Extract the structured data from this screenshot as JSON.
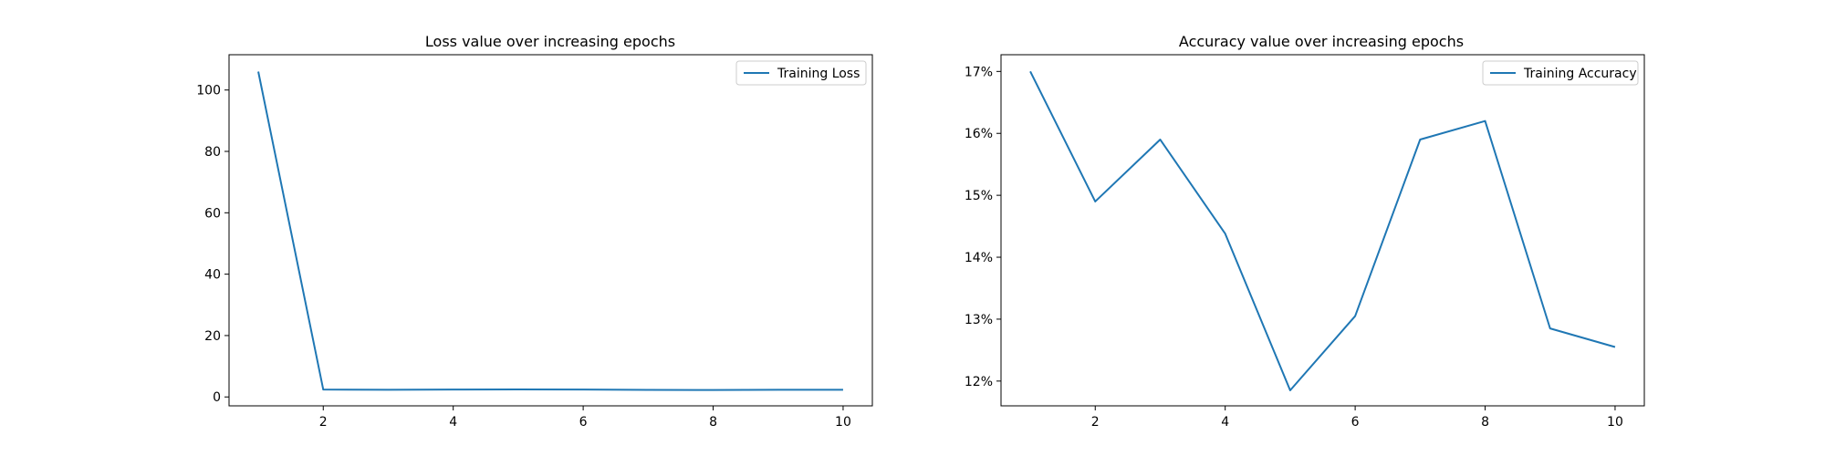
{
  "chart_data": [
    {
      "type": "line",
      "title": "Loss value over increasing epochs",
      "xlabel": "",
      "ylabel": "",
      "x": [
        1,
        2,
        3,
        4,
        5,
        6,
        7,
        8,
        9,
        10
      ],
      "xlim": [
        0.55,
        10.45
      ],
      "ylim": [
        -2.9,
        111.5
      ],
      "xticks": [
        2,
        4,
        6,
        8,
        10
      ],
      "yticks": [
        0,
        20,
        40,
        60,
        80,
        100
      ],
      "ytick_labels": [
        "0",
        "20",
        "40",
        "60",
        "80",
        "100"
      ],
      "series": [
        {
          "name": "Training Loss",
          "values": [
            106,
            2.4,
            2.35,
            2.4,
            2.45,
            2.4,
            2.3,
            2.25,
            2.35,
            2.35
          ]
        }
      ],
      "legend": "upper right",
      "grid": false,
      "line_color": "#1f77b4"
    },
    {
      "type": "line",
      "title": "Accuracy value over increasing epochs",
      "xlabel": "",
      "ylabel": "",
      "x": [
        1,
        2,
        3,
        4,
        5,
        6,
        7,
        8,
        9,
        10
      ],
      "xlim": [
        0.55,
        10.45
      ],
      "ylim": [
        11.6,
        17.27
      ],
      "xticks": [
        2,
        4,
        6,
        8,
        10
      ],
      "yticks": [
        12,
        13,
        14,
        15,
        16,
        17
      ],
      "ytick_labels": [
        "12%",
        "13%",
        "14%",
        "15%",
        "16%",
        "17%"
      ],
      "series": [
        {
          "name": "Training Accuracy",
          "values": [
            17.0,
            14.9,
            15.9,
            14.38,
            11.85,
            13.05,
            15.9,
            16.2,
            12.85,
            12.55
          ]
        }
      ],
      "legend": "upper right",
      "grid": false,
      "line_color": "#1f77b4"
    }
  ]
}
